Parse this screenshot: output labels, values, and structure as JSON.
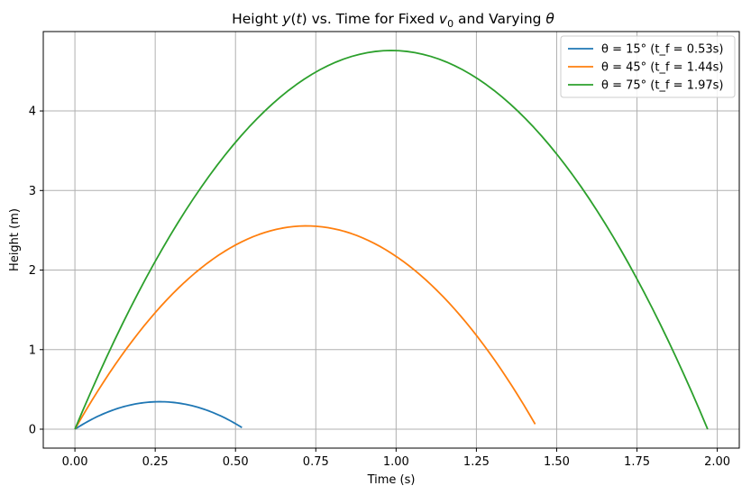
{
  "chart_data": {
    "type": "line",
    "title": "Height y(t) vs. Time for Fixed v0 and Varying θ",
    "title_parts": {
      "lead": "Height ",
      "y": "y",
      "paren_open": "(",
      "t": "t",
      "after_t": ") vs. Time for Fixed ",
      "v": "v",
      "v_sub": "0",
      "after_v": " and Varying ",
      "theta": "θ"
    },
    "xlabel": "Time (s)",
    "ylabel": "Height (m)",
    "xlim": [
      -0.0985,
      2.0685
    ],
    "ylim": [
      -0.238,
      4.998
    ],
    "xticks": [
      0.0,
      0.25,
      0.5,
      0.75,
      1.0,
      1.25,
      1.5,
      1.75,
      2.0
    ],
    "xtick_labels": [
      "0.00",
      "0.25",
      "0.50",
      "0.75",
      "1.00",
      "1.25",
      "1.50",
      "1.75",
      "2.00"
    ],
    "yticks": [
      0,
      1,
      2,
      3,
      4
    ],
    "ytick_labels": [
      "0",
      "1",
      "2",
      "3",
      "4"
    ],
    "grid": true,
    "legend_position": "top-right",
    "series": [
      {
        "name": "θ = 15° (t_f = 0.53s)",
        "color": "#1f77b4",
        "peak_time": 0.264,
        "peak_height": 0.345,
        "t_end": 0.52,
        "y_end": 0.03
      },
      {
        "name": "θ = 45° (t_f = 1.44s)",
        "color": "#ff7f0e",
        "peak_time": 0.721,
        "peak_height": 2.555,
        "t_end": 1.433,
        "y_end": 0.07
      },
      {
        "name": "θ = 75° (t_f = 1.97s)",
        "color": "#2ca02c",
        "peak_time": 0.985,
        "peak_height": 4.76,
        "t_end": 1.97,
        "y_end": 0.0
      }
    ]
  }
}
